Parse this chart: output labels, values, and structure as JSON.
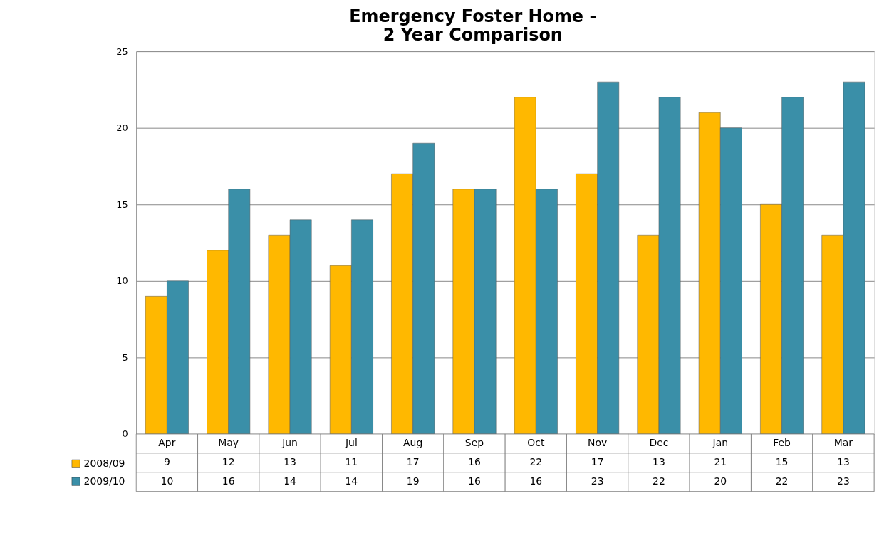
{
  "chart_data": {
    "type": "bar",
    "title": "Emergency Foster Home -\n2 Year Comparison",
    "categories": [
      "Apr",
      "May",
      "Jun",
      "Jul",
      "Aug",
      "Sep",
      "Oct",
      "Nov",
      "Dec",
      "Jan",
      "Feb",
      "Mar"
    ],
    "series": [
      {
        "name": "2008/09",
        "color": "#ffb800",
        "values": [
          9,
          12,
          13,
          11,
          17,
          16,
          22,
          17,
          13,
          21,
          15,
          13
        ]
      },
      {
        "name": "2009/10",
        "color": "#3a8fa8",
        "values": [
          10,
          16,
          14,
          14,
          19,
          16,
          16,
          23,
          22,
          20,
          22,
          23
        ]
      }
    ],
    "ylim": [
      0,
      25
    ],
    "yticks": [
      0,
      5,
      10,
      15,
      20,
      25
    ],
    "grid": "y",
    "legend": "bottom",
    "data_labels": true
  }
}
